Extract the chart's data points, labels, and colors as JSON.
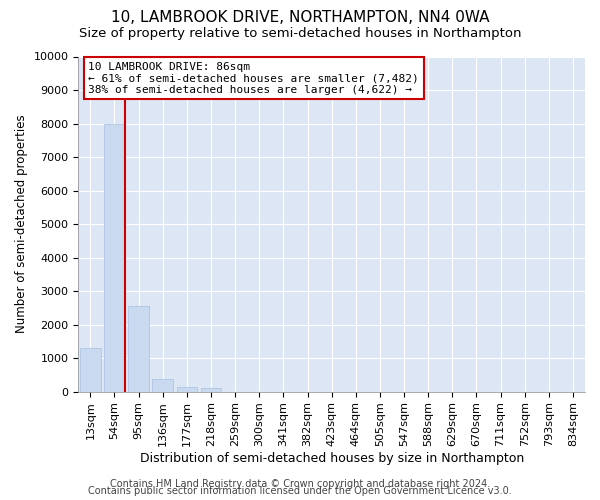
{
  "title_line1": "10, LAMBROOK DRIVE, NORTHAMPTON, NN4 0WA",
  "title_line2": "Size of property relative to semi-detached houses in Northampton",
  "xlabel": "Distribution of semi-detached houses by size in Northampton",
  "ylabel": "Number of semi-detached properties",
  "footnote1": "Contains HM Land Registry data © Crown copyright and database right 2024.",
  "footnote2": "Contains public sector information licensed under the Open Government Licence v3.0.",
  "bar_labels": [
    "13sqm",
    "54sqm",
    "95sqm",
    "136sqm",
    "177sqm",
    "218sqm",
    "259sqm",
    "300sqm",
    "341sqm",
    "382sqm",
    "423sqm",
    "464sqm",
    "505sqm",
    "547sqm",
    "588sqm",
    "629sqm",
    "670sqm",
    "711sqm",
    "752sqm",
    "793sqm",
    "834sqm"
  ],
  "bar_values": [
    1300,
    8000,
    2550,
    390,
    155,
    110,
    0,
    0,
    0,
    0,
    0,
    0,
    0,
    0,
    0,
    0,
    0,
    0,
    0,
    0,
    0
  ],
  "bar_color": "#c8d9f0",
  "bar_edge_color": "#a8c0e0",
  "property_line_color": "#cc0000",
  "annotation_line1": "10 LAMBROOK DRIVE: 86sqm",
  "annotation_line2": "← 61% of semi-detached houses are smaller (7,482)",
  "annotation_line3": "38% of semi-detached houses are larger (4,622) →",
  "annotation_box_color": "#ffffff",
  "annotation_box_edge": "#cc0000",
  "ylim": [
    0,
    10000
  ],
  "yticks": [
    0,
    1000,
    2000,
    3000,
    4000,
    5000,
    6000,
    7000,
    8000,
    9000,
    10000
  ],
  "bg_color": "#ffffff",
  "plot_bg_color": "#dce6f5",
  "grid_color": "#ffffff",
  "title1_fontsize": 11,
  "title2_fontsize": 9.5,
  "xlabel_fontsize": 9,
  "ylabel_fontsize": 8.5,
  "tick_fontsize": 8,
  "annot_fontsize": 8,
  "footnote_fontsize": 7
}
